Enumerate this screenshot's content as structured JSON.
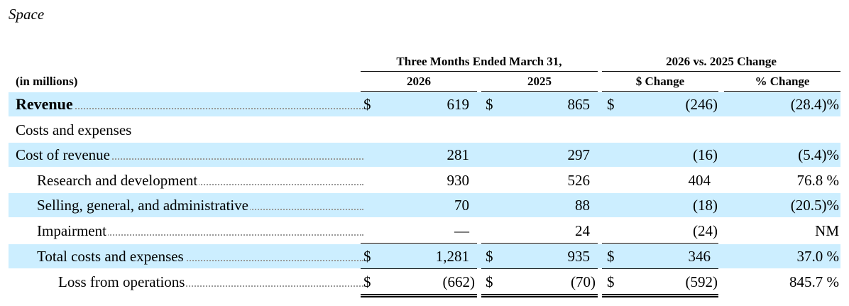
{
  "section_title": "Space",
  "headers": {
    "units": "(in millions)",
    "group1": "Three Months Ended March 31,",
    "group2": "2026 vs. 2025 Change",
    "col_2026": "2026",
    "col_2025": "2025",
    "col_dollar_change": "$ Change",
    "col_pct_change": "% Change"
  },
  "rows": [
    {
      "label": "Revenue",
      "d1": "$",
      "v2026": "619",
      "d2": "$",
      "v2025": "865",
      "d3": "$",
      "dchg": "(246)",
      "pct": "(28.4)%"
    },
    {
      "label": "Costs and expenses",
      "d1": "",
      "v2026": "",
      "d2": "",
      "v2025": "",
      "d3": "",
      "dchg": "",
      "pct": ""
    },
    {
      "label": "Cost of revenue",
      "d1": "",
      "v2026": "281",
      "d2": "",
      "v2025": "297",
      "d3": "",
      "dchg": "(16)",
      "pct": "(5.4)%"
    },
    {
      "label": "Research and development",
      "d1": "",
      "v2026": "930",
      "d2": "",
      "v2025": "526",
      "d3": "",
      "dchg": "404",
      "pct": "76.8 %"
    },
    {
      "label": "Selling, general, and administrative",
      "d1": "",
      "v2026": "70",
      "d2": "",
      "v2025": "88",
      "d3": "",
      "dchg": "(18)",
      "pct": "(20.5)%"
    },
    {
      "label": "Impairment",
      "d1": "",
      "v2026": "—",
      "d2": "",
      "v2025": "24",
      "d3": "",
      "dchg": "(24)",
      "pct": "NM"
    },
    {
      "label": "Total costs and expenses",
      "d1": "$",
      "v2026": "1,281",
      "d2": "$",
      "v2025": "935",
      "d3": "$",
      "dchg": "346",
      "pct": "37.0 %"
    },
    {
      "label": "Loss from operations",
      "d1": "$",
      "v2026": "(662)",
      "d2": "$",
      "v2025": "(70)",
      "d3": "$",
      "dchg": "(592)",
      "pct": "845.7 %"
    }
  ]
}
